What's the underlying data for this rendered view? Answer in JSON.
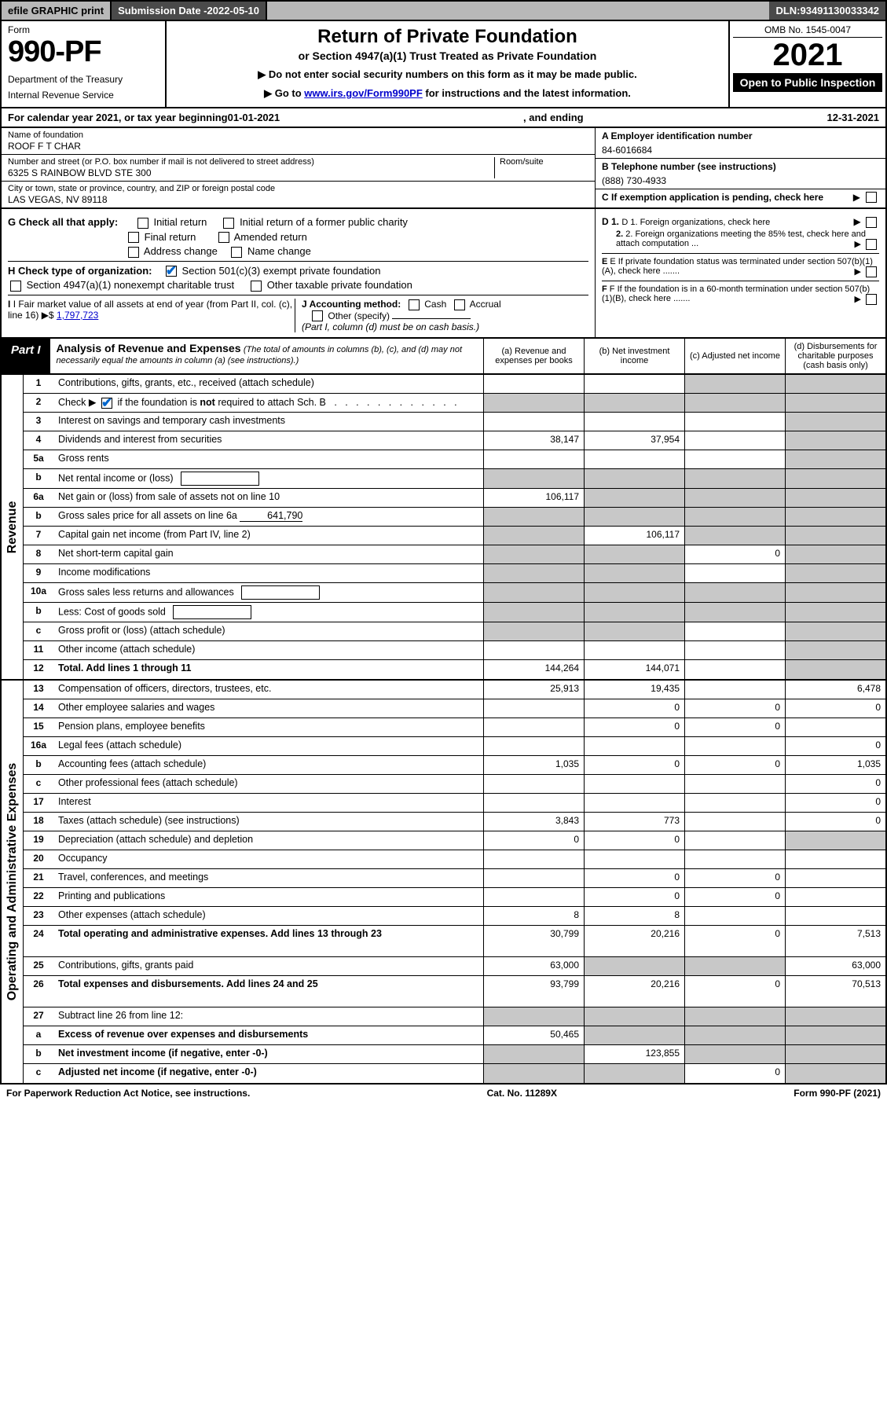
{
  "topbar": {
    "efile": "efile GRAPHIC print",
    "subdate_label": "Submission Date - ",
    "subdate": "2022-05-10",
    "dln_label": "DLN: ",
    "dln": "93491130033342"
  },
  "header": {
    "form_label": "Form",
    "form_no": "990-PF",
    "dept1": "Department of the Treasury",
    "dept2": "Internal Revenue Service",
    "title": "Return of Private Foundation",
    "subtitle": "or Section 4947(a)(1) Trust Treated as Private Foundation",
    "warn1": "▶ Do not enter social security numbers on this form as it may be made public.",
    "warn2_pre": "▶ Go to ",
    "warn2_link": "www.irs.gov/Form990PF",
    "warn2_post": " for instructions and the latest information.",
    "omb": "OMB No. 1545-0047",
    "year": "2021",
    "open": "Open to Public Inspection"
  },
  "calendar": {
    "text1": "For calendar year 2021, or tax year beginning ",
    "begin": "01-01-2021",
    "text2": ", and ending ",
    "end": "12-31-2021"
  },
  "info": {
    "name_lbl": "Name of foundation",
    "name": "ROOF F T CHAR",
    "addr_lbl": "Number and street (or P.O. box number if mail is not delivered to street address)",
    "addr": "6325 S RAINBOW BLVD STE 300",
    "room_lbl": "Room/suite",
    "city_lbl": "City or town, state or province, country, and ZIP or foreign postal code",
    "city": "LAS VEGAS, NV  89118",
    "ein_lbl": "A Employer identification number",
    "ein": "84-6016684",
    "phone_lbl": "B Telephone number (see instructions)",
    "phone": "(888) 730-4933",
    "c_lbl": "C If exemption application is pending, check here"
  },
  "checks": {
    "g_lbl": "G Check all that apply:",
    "g1": "Initial return",
    "g2": "Initial return of a former public charity",
    "g3": "Final return",
    "g4": "Amended return",
    "g5": "Address change",
    "g6": "Name change",
    "h_lbl": "H Check type of organization:",
    "h1": "Section 501(c)(3) exempt private foundation",
    "h2": "Section 4947(a)(1) nonexempt charitable trust",
    "h3": "Other taxable private foundation",
    "i_lbl": "I Fair market value of all assets at end of year (from Part II, col. (c), line 16)",
    "i_val": "1,797,723",
    "j_lbl": "J Accounting method:",
    "j1": "Cash",
    "j2": "Accrual",
    "j3": "Other (specify)",
    "j_note": "(Part I, column (d) must be on cash basis.)",
    "d1": "D 1. Foreign organizations, check here",
    "d2": "2. Foreign organizations meeting the 85% test, check here and attach computation ...",
    "e": "E If private foundation status was terminated under section 507(b)(1)(A), check here .......",
    "f": "F If the foundation is in a 60-month termination under section 507(b)(1)(B), check here ......."
  },
  "part1": {
    "label": "Part I",
    "title": "Analysis of Revenue and Expenses",
    "note": "(The total of amounts in columns (b), (c), and (d) may not necessarily equal the amounts in column (a) (see instructions).)",
    "col_a": "(a) Revenue and expenses per books",
    "col_b": "(b) Net investment income",
    "col_c": "(c) Adjusted net income",
    "col_d": "(d) Disbursements for charitable purposes (cash basis only)"
  },
  "side": {
    "revenue": "Revenue",
    "opex": "Operating and Administrative Expenses"
  },
  "rows": [
    {
      "n": "1",
      "d": "Contributions, gifts, grants, etc., received (attach schedule)",
      "a": "",
      "b": "",
      "c": "g",
      "dd": "g"
    },
    {
      "n": "2",
      "d": "Check ▶ ☑ if the foundation is not required to attach Sch. B",
      "a": "g",
      "b": "g",
      "c": "g",
      "dd": "g",
      "chk": true
    },
    {
      "n": "3",
      "d": "Interest on savings and temporary cash investments",
      "a": "",
      "b": "",
      "c": "",
      "dd": "g"
    },
    {
      "n": "4",
      "d": "Dividends and interest from securities",
      "a": "38,147",
      "b": "37,954",
      "c": "",
      "dd": "g"
    },
    {
      "n": "5a",
      "d": "Gross rents",
      "a": "",
      "b": "",
      "c": "",
      "dd": "g"
    },
    {
      "n": "b",
      "d": "Net rental income or (loss)",
      "a": "g",
      "b": "g",
      "c": "g",
      "dd": "g",
      "midbox": true
    },
    {
      "n": "6a",
      "d": "Net gain or (loss) from sale of assets not on line 10",
      "a": "106,117",
      "b": "g",
      "c": "g",
      "dd": "g"
    },
    {
      "n": "b",
      "d": "Gross sales price for all assets on line 6a",
      "a": "g",
      "b": "g",
      "c": "g",
      "dd": "g",
      "inline": "641,790"
    },
    {
      "n": "7",
      "d": "Capital gain net income (from Part IV, line 2)",
      "a": "g",
      "b": "106,117",
      "c": "g",
      "dd": "g"
    },
    {
      "n": "8",
      "d": "Net short-term capital gain",
      "a": "g",
      "b": "g",
      "c": "0",
      "dd": "g"
    },
    {
      "n": "9",
      "d": "Income modifications",
      "a": "g",
      "b": "g",
      "c": "",
      "dd": "g"
    },
    {
      "n": "10a",
      "d": "Gross sales less returns and allowances",
      "a": "g",
      "b": "g",
      "c": "g",
      "dd": "g",
      "midbox": true
    },
    {
      "n": "b",
      "d": "Less: Cost of goods sold",
      "a": "g",
      "b": "g",
      "c": "g",
      "dd": "g",
      "midbox": true
    },
    {
      "n": "c",
      "d": "Gross profit or (loss) (attach schedule)",
      "a": "g",
      "b": "g",
      "c": "",
      "dd": "g"
    },
    {
      "n": "11",
      "d": "Other income (attach schedule)",
      "a": "",
      "b": "",
      "c": "",
      "dd": "g"
    },
    {
      "n": "12",
      "d": "Total. Add lines 1 through 11",
      "a": "144,264",
      "b": "144,071",
      "c": "",
      "dd": "g",
      "bold": true
    }
  ],
  "rows2": [
    {
      "n": "13",
      "d": "Compensation of officers, directors, trustees, etc.",
      "a": "25,913",
      "b": "19,435",
      "c": "",
      "dd": "6,478"
    },
    {
      "n": "14",
      "d": "Other employee salaries and wages",
      "a": "",
      "b": "0",
      "c": "0",
      "dd": "0"
    },
    {
      "n": "15",
      "d": "Pension plans, employee benefits",
      "a": "",
      "b": "0",
      "c": "0",
      "dd": ""
    },
    {
      "n": "16a",
      "d": "Legal fees (attach schedule)",
      "a": "",
      "b": "",
      "c": "",
      "dd": "0"
    },
    {
      "n": "b",
      "d": "Accounting fees (attach schedule)",
      "a": "1,035",
      "b": "0",
      "c": "0",
      "dd": "1,035"
    },
    {
      "n": "c",
      "d": "Other professional fees (attach schedule)",
      "a": "",
      "b": "",
      "c": "",
      "dd": "0"
    },
    {
      "n": "17",
      "d": "Interest",
      "a": "",
      "b": "",
      "c": "",
      "dd": "0"
    },
    {
      "n": "18",
      "d": "Taxes (attach schedule) (see instructions)",
      "a": "3,843",
      "b": "773",
      "c": "",
      "dd": "0"
    },
    {
      "n": "19",
      "d": "Depreciation (attach schedule) and depletion",
      "a": "0",
      "b": "0",
      "c": "",
      "dd": "g"
    },
    {
      "n": "20",
      "d": "Occupancy",
      "a": "",
      "b": "",
      "c": "",
      "dd": ""
    },
    {
      "n": "21",
      "d": "Travel, conferences, and meetings",
      "a": "",
      "b": "0",
      "c": "0",
      "dd": ""
    },
    {
      "n": "22",
      "d": "Printing and publications",
      "a": "",
      "b": "0",
      "c": "0",
      "dd": ""
    },
    {
      "n": "23",
      "d": "Other expenses (attach schedule)",
      "a": "8",
      "b": "8",
      "c": "",
      "dd": ""
    },
    {
      "n": "24",
      "d": "Total operating and administrative expenses. Add lines 13 through 23",
      "a": "30,799",
      "b": "20,216",
      "c": "0",
      "dd": "7,513",
      "bold": true,
      "tall": true
    },
    {
      "n": "25",
      "d": "Contributions, gifts, grants paid",
      "a": "63,000",
      "b": "g",
      "c": "g",
      "dd": "63,000"
    },
    {
      "n": "26",
      "d": "Total expenses and disbursements. Add lines 24 and 25",
      "a": "93,799",
      "b": "20,216",
      "c": "0",
      "dd": "70,513",
      "bold": true,
      "tall": true
    },
    {
      "n": "27",
      "d": "Subtract line 26 from line 12:",
      "a": "g",
      "b": "g",
      "c": "g",
      "dd": "g"
    },
    {
      "n": "a",
      "d": "Excess of revenue over expenses and disbursements",
      "a": "50,465",
      "b": "g",
      "c": "g",
      "dd": "g",
      "bold": true
    },
    {
      "n": "b",
      "d": "Net investment income (if negative, enter -0-)",
      "a": "g",
      "b": "123,855",
      "c": "g",
      "dd": "g",
      "bold": true
    },
    {
      "n": "c",
      "d": "Adjusted net income (if negative, enter -0-)",
      "a": "g",
      "b": "g",
      "c": "0",
      "dd": "g",
      "bold": true
    }
  ],
  "footer": {
    "left": "For Paperwork Reduction Act Notice, see instructions.",
    "mid": "Cat. No. 11289X",
    "right": "Form 990-PF (2021)"
  },
  "colors": {
    "grey_bg": "#c8c8c8",
    "dark_bg": "#4a4a4a",
    "link": "#0000cc",
    "check": "#0066cc"
  }
}
